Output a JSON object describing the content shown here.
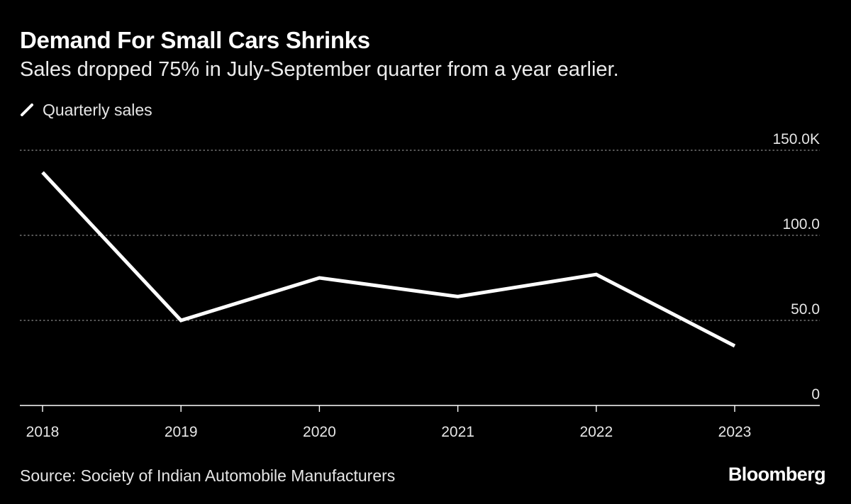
{
  "header": {
    "title": "Demand For Small Cars Shrinks",
    "subtitle": "Sales dropped 75% in July-September quarter from a year earlier."
  },
  "legend": {
    "label": "Quarterly sales",
    "icon": "line-swatch-icon"
  },
  "footer": {
    "source": "Source: Society of Indian Automobile Manufacturers",
    "brand": "Bloomberg"
  },
  "colors": {
    "background": "#000000",
    "line": "#ffffff",
    "grid": "#8a8a8a",
    "text": "#e6e6e6"
  },
  "chart_data": {
    "type": "line",
    "title": "Demand For Small Cars Shrinks",
    "subtitle": "Sales dropped 75% in July-September quarter from a year earlier.",
    "xlabel": "",
    "ylabel": "",
    "categories": [
      "2018",
      "2019",
      "2020",
      "2021",
      "2022",
      "2023"
    ],
    "series": [
      {
        "name": "Quarterly sales",
        "values": [
          137,
          50,
          75,
          64,
          77,
          35
        ]
      }
    ],
    "ylim": [
      0,
      150
    ],
    "yticks": [
      {
        "value": 0,
        "label": "0"
      },
      {
        "value": 50,
        "label": "50.0"
      },
      {
        "value": 100,
        "label": "100.0"
      },
      {
        "value": 150,
        "label": "150.0K"
      }
    ],
    "grid": true,
    "legend_position": "top-left",
    "y_axis_position": "right"
  }
}
